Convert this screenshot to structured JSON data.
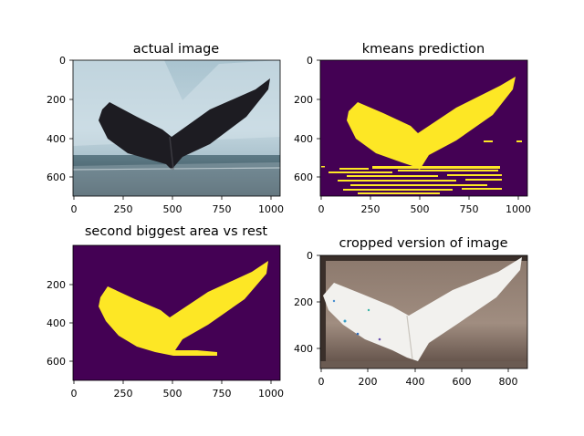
{
  "chart_data": [
    {
      "type": "image",
      "title": "actual image",
      "image": "photo of a humpback whale tail above water against an iceberg background",
      "xlim": [
        0,
        1050
      ],
      "ylim": [
        700,
        0
      ],
      "xticks": [
        0,
        250,
        500,
        750,
        1000
      ],
      "yticks": [
        0,
        200,
        400,
        600
      ],
      "colors": {
        "sky": "#9fb9c6",
        "ice": "#c9dbe4",
        "water": "#4d6670",
        "tail": "#1d1c22"
      }
    },
    {
      "type": "image",
      "title": "kmeans prediction",
      "image": "binary segmentation mask of whale tail, yellow on purple",
      "xlim": [
        0,
        1050
      ],
      "ylim": [
        700,
        0
      ],
      "xticks": [
        0,
        250,
        500,
        750,
        1000
      ],
      "yticks": [
        0,
        200,
        400,
        600
      ],
      "colors": {
        "background": "#440154",
        "foreground": "#fde725"
      }
    },
    {
      "type": "image",
      "title": "second biggest area vs rest",
      "image": "binary mask of the whale tail region only, yellow on purple",
      "xlim": [
        0,
        1050
      ],
      "ylim": [
        700,
        0
      ],
      "xticks": [
        0,
        250,
        500,
        750,
        1000
      ],
      "yticks": [
        200,
        400,
        600
      ],
      "colors": {
        "background": "#440154",
        "foreground": "#fde725"
      }
    },
    {
      "type": "image",
      "title": "cropped version of image",
      "image": "cropped color-processed whale tail image, white tail on brown background",
      "xlim": [
        0,
        880
      ],
      "ylim": [
        490,
        0
      ],
      "xticks": [
        0,
        200,
        400,
        600,
        800
      ],
      "yticks": [
        0,
        200,
        400
      ],
      "colors": {
        "background": "#7a6a60",
        "tail": "#f2f1ee",
        "frame": "#3a2f2a"
      }
    }
  ]
}
